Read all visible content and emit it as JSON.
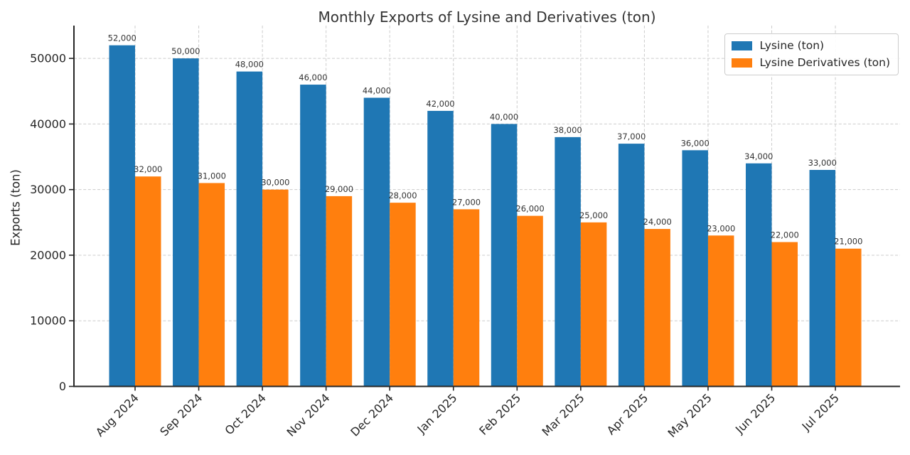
{
  "chart_data": {
    "type": "bar",
    "title": "Monthly Exports of Lysine and Derivatives (ton)",
    "xlabel": "",
    "ylabel": "Exports (ton)",
    "categories": [
      "Aug 2024",
      "Sep 2024",
      "Oct 2024",
      "Nov 2024",
      "Dec 2024",
      "Jan 2025",
      "Feb 2025",
      "Mar 2025",
      "Apr 2025",
      "May 2025",
      "Jun 2025",
      "Jul 2025"
    ],
    "series": [
      {
        "name": "Lysine (ton)",
        "color": "#1f77b4",
        "values": [
          52000,
          50000,
          48000,
          46000,
          44000,
          42000,
          40000,
          38000,
          37000,
          36000,
          34000,
          33000
        ]
      },
      {
        "name": "Lysine Derivatives (ton)",
        "color": "#ff7f0e",
        "values": [
          32000,
          31000,
          30000,
          29000,
          28000,
          27000,
          26000,
          25000,
          24000,
          23000,
          22000,
          21000
        ]
      }
    ],
    "value_labels": [
      [
        "52,000",
        "50,000",
        "48,000",
        "46,000",
        "44,000",
        "42,000",
        "40,000",
        "38,000",
        "37,000",
        "36,000",
        "34,000",
        "33,000"
      ],
      [
        "32,000",
        "31,000",
        "30,000",
        "29,000",
        "28,000",
        "27,000",
        "26,000",
        "25,000",
        "24,000",
        "23,000",
        "22,000",
        "21,000"
      ]
    ],
    "ylim": [
      0,
      55000
    ],
    "yticks": [
      0,
      10000,
      20000,
      30000,
      40000,
      50000
    ],
    "ytick_labels": [
      "0",
      "10000",
      "20000",
      "30000",
      "40000",
      "50000"
    ],
    "grid": true,
    "grid_style": "dashed",
    "legend_position": "upper right",
    "x_tick_rotation": 45
  },
  "colors": {
    "axis": "#262626",
    "grid": "#cccccc",
    "tick_text": "#262626",
    "title_text": "#333333",
    "value_label_text": "#333333",
    "background": "#ffffff"
  }
}
